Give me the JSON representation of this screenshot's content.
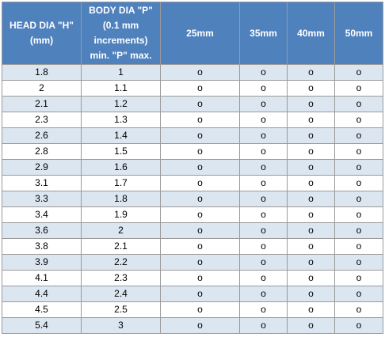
{
  "header": {
    "head_dia": [
      "HEAD DIA \"H\"",
      "(mm)"
    ],
    "body_dia": [
      "BODY DIA \"P\"",
      "(0.1 mm",
      "increments)",
      "min. \"P\" max."
    ],
    "lengths": [
      "25mm",
      "35mm",
      "40mm",
      "50mm"
    ]
  },
  "rows": [
    {
      "head": "1.8",
      "body": "1",
      "marks": [
        "o",
        "o",
        "o",
        "o"
      ]
    },
    {
      "head": "2",
      "body": "1.1",
      "marks": [
        "o",
        "o",
        "o",
        "o"
      ]
    },
    {
      "head": "2.1",
      "body": "1.2",
      "marks": [
        "o",
        "o",
        "o",
        "o"
      ]
    },
    {
      "head": "2.3",
      "body": "1.3",
      "marks": [
        "o",
        "o",
        "o",
        "o"
      ]
    },
    {
      "head": "2.6",
      "body": "1.4",
      "marks": [
        "o",
        "o",
        "o",
        "o"
      ]
    },
    {
      "head": "2.8",
      "body": "1.5",
      "marks": [
        "o",
        "o",
        "o",
        "o"
      ]
    },
    {
      "head": "2.9",
      "body": "1.6",
      "marks": [
        "o",
        "o",
        "o",
        "o"
      ]
    },
    {
      "head": "3.1",
      "body": "1.7",
      "marks": [
        "o",
        "o",
        "o",
        "o"
      ]
    },
    {
      "head": "3.3",
      "body": "1.8",
      "marks": [
        "o",
        "o",
        "o",
        "o"
      ]
    },
    {
      "head": "3.4",
      "body": "1.9",
      "marks": [
        "o",
        "o",
        "o",
        "o"
      ]
    },
    {
      "head": "3.6",
      "body": "2",
      "marks": [
        "o",
        "o",
        "o",
        "o"
      ]
    },
    {
      "head": "3.8",
      "body": "2.1",
      "marks": [
        "o",
        "o",
        "o",
        "o"
      ]
    },
    {
      "head": "3.9",
      "body": "2.2",
      "marks": [
        "o",
        "o",
        "o",
        "o"
      ]
    },
    {
      "head": "4.1",
      "body": "2.3",
      "marks": [
        "o",
        "o",
        "o",
        "o"
      ]
    },
    {
      "head": "4.4",
      "body": "2.4",
      "marks": [
        "o",
        "o",
        "o",
        "o"
      ]
    },
    {
      "head": "4.5",
      "body": "2.5",
      "marks": [
        "o",
        "o",
        "o",
        "o"
      ]
    },
    {
      "head": "5.4",
      "body": "3",
      "marks": [
        "o",
        "o",
        "o",
        "o"
      ]
    }
  ],
  "colors": {
    "header_bg": "#4f81bd",
    "header_text": "#ffffff",
    "band_bg": "#dce6f1",
    "border": "#9a9a9a"
  }
}
